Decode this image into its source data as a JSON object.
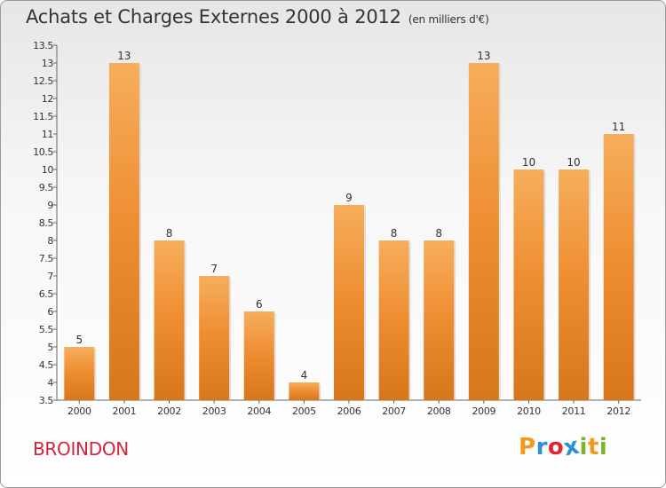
{
  "title": "Achats et Charges Externes 2000 à 2012",
  "subtitle": "(en milliers d'€)",
  "location": "BROINDON",
  "logo": {
    "letters": [
      "P",
      "r",
      "o",
      "x",
      "i",
      "t",
      "i"
    ],
    "colors": [
      "#f29a1f",
      "#2a8fd6",
      "#e2262f",
      "#2a8fd6",
      "#7ab62d",
      "#f29a1f",
      "#7ab62d"
    ]
  },
  "colors": {
    "bar": "#ee8c30",
    "bar_light": "#f6ae5b",
    "bar_dark": "#d8761c",
    "title": "#333333",
    "location": "#d0253a"
  },
  "chart_data": {
    "type": "bar",
    "categories": [
      "2000",
      "2001",
      "2002",
      "2003",
      "2004",
      "2005",
      "2006",
      "2007",
      "2008",
      "2009",
      "2010",
      "2011",
      "2012"
    ],
    "values": [
      5,
      13,
      8,
      7,
      6,
      4,
      9,
      8,
      8,
      13,
      10,
      10,
      11
    ],
    "value_labels": [
      "5",
      "13",
      "8",
      "7",
      "6",
      "4",
      "9",
      "8",
      "8",
      "13",
      "10",
      "10",
      "11"
    ],
    "ylim": [
      3.5,
      13.5
    ],
    "yticks": [
      3.5,
      4,
      4.5,
      5,
      5.5,
      6,
      6.5,
      7,
      7.5,
      8,
      8.5,
      9,
      9.5,
      10,
      10.5,
      11,
      11.5,
      12,
      12.5,
      13,
      13.5
    ],
    "ytick_labels": [
      "3.5",
      "4",
      "4.5",
      "5",
      "5.5",
      "6",
      "6.5",
      "7",
      "7.5",
      "8",
      "8.5",
      "9",
      "9.5",
      "10",
      "10.5",
      "11",
      "11.5",
      "12",
      "12.5",
      "13",
      "13.5"
    ],
    "grid": false,
    "legend": "none"
  }
}
